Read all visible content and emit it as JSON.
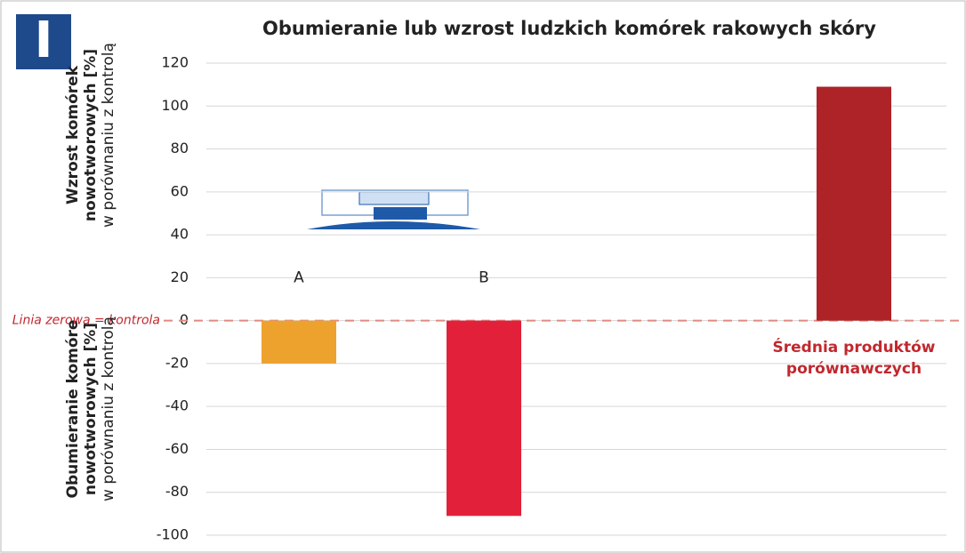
{
  "chart_data": {
    "type": "bar",
    "badge": "I",
    "title": "Obumieranie lub wzrost ludzkich komórek rakowych skóry",
    "ylabel_positive": {
      "title": "Wzrost komórek nowotworowych [%]",
      "subtitle": "w porównaniu z kontrolą"
    },
    "ylabel_negative": {
      "title": "Obumieranie komóre nowotworowych [%]",
      "subtitle": "w porównaniu z kontrolą"
    },
    "zero_line_label": "Linia zerowa = kontrola",
    "categories": [
      "A",
      "B",
      null,
      "Średnia produktów porównawczych"
    ],
    "values": [
      -20,
      -91,
      null,
      109
    ],
    "colors": [
      "#eea22e",
      "#e3203a",
      null,
      "#ad2328"
    ],
    "ylim": [
      -100,
      120
    ],
    "yticks": [
      -100,
      -80,
      -60,
      -40,
      -20,
      0,
      20,
      40,
      60,
      80,
      100,
      120
    ],
    "grid": true
  }
}
